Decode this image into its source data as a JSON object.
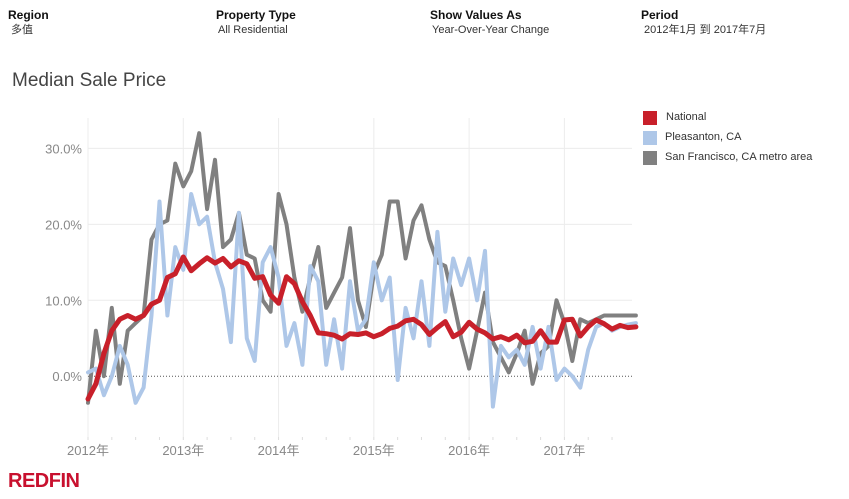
{
  "filters": {
    "region": {
      "label": "Region",
      "value": "多值"
    },
    "property_type": {
      "label": "Property Type",
      "value": "All Residential"
    },
    "show_values_as": {
      "label": "Show Values As",
      "value": "Year-Over-Year Change"
    },
    "period": {
      "label": "Period",
      "value": "2012年1月 到 2017年7月"
    }
  },
  "brand": {
    "logo_text": "REDFIN",
    "color": "#c8102e"
  },
  "chart_data": {
    "type": "line",
    "title": "Median Sale Price",
    "xlabel": "",
    "ylabel": "",
    "x_start": "2012-01",
    "x_end": "2017-07",
    "x_tick_labels": [
      "2012年",
      "2013年",
      "2014年",
      "2015年",
      "2016年",
      "2017年"
    ],
    "y_tick_labels": [
      "0.0%",
      "10.0%",
      "20.0%",
      "30.0%"
    ],
    "y_ticks": [
      0,
      10,
      20,
      30
    ],
    "ylim": [
      -8,
      34
    ],
    "legend_position": "right",
    "grid": true,
    "series": [
      {
        "name": "National",
        "color": "#c8202a",
        "values": [
          -3.0,
          -1.0,
          3.0,
          6.0,
          7.5,
          8.0,
          7.5,
          8.0,
          9.5,
          10.0,
          13.0,
          13.5,
          15.7,
          13.9,
          14.8,
          15.6,
          14.9,
          15.5,
          14.4,
          15.2,
          14.8,
          12.9,
          13.1,
          10.7,
          9.6,
          13.1,
          12.2,
          9.8,
          8.0,
          5.7,
          5.6,
          5.4,
          4.9,
          5.6,
          5.5,
          5.7,
          5.2,
          5.6,
          6.3,
          6.6,
          7.3,
          7.5,
          6.8,
          5.5,
          6.4,
          7.2,
          5.2,
          5.8,
          7.1,
          6.2,
          5.7,
          4.9,
          5.2,
          4.8,
          5.4,
          4.4,
          4.6,
          6.0,
          4.5,
          4.5,
          7.4,
          7.5,
          5.3,
          6.5,
          7.4,
          6.9,
          6.2,
          6.7,
          6.4,
          6.5
        ]
      },
      {
        "name": "Pleasanton, CA",
        "color": "#aec7e8",
        "values": [
          0.5,
          1.0,
          -2.5,
          0.0,
          4.0,
          1.5,
          -3.5,
          -1.5,
          8.0,
          23.0,
          8.0,
          17.0,
          14.0,
          24.0,
          20.0,
          21.0,
          15.0,
          11.5,
          4.5,
          21.5,
          5.0,
          2.0,
          15.0,
          17.0,
          13.0,
          4.0,
          7.0,
          1.5,
          14.5,
          12.5,
          1.5,
          7.5,
          1.0,
          12.5,
          6.0,
          7.5,
          15.0,
          10.0,
          13.0,
          -0.5,
          9.0,
          5.0,
          12.5,
          4.0,
          19.0,
          8.5,
          15.5,
          12.0,
          15.5,
          10.0,
          16.5,
          -4.0,
          4.0,
          2.5,
          3.5,
          1.5,
          6.5,
          1.0,
          6.5,
          -0.5,
          1.0,
          0.0,
          -1.5,
          3.5,
          6.5,
          7.0,
          6.0,
          6.5,
          6.8,
          7.0
        ]
      },
      {
        "name": "San Francisco, CA metro area",
        "color": "#808080",
        "values": [
          -3.5,
          6.0,
          0.0,
          9.0,
          -1.0,
          6.0,
          7.0,
          8.0,
          18.0,
          20.0,
          20.5,
          28.0,
          25.0,
          27.0,
          32.0,
          22.0,
          28.5,
          17.0,
          18.0,
          21.5,
          16.0,
          15.5,
          10.0,
          8.5,
          24.0,
          20.0,
          13.0,
          8.5,
          13.0,
          17.0,
          9.0,
          11.0,
          13.0,
          19.5,
          10.0,
          6.5,
          13.5,
          16.0,
          23.0,
          23.0,
          15.5,
          20.5,
          22.5,
          18.0,
          15.0,
          14.5,
          10.0,
          5.0,
          1.0,
          6.0,
          11.0,
          4.5,
          2.5,
          0.5,
          3.0,
          6.0,
          -1.0,
          3.0,
          4.0,
          10.0,
          7.0,
          2.0,
          7.5,
          7.0,
          7.5,
          8.0,
          8.0,
          8.0,
          8.0,
          8.0
        ]
      }
    ]
  }
}
